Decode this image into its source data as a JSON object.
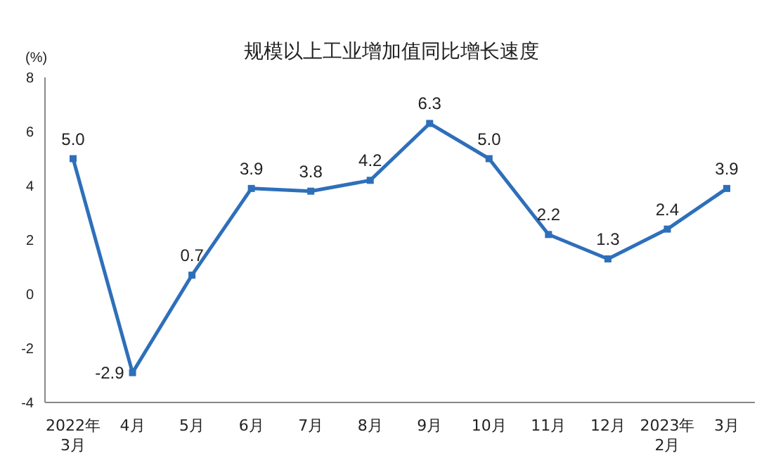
{
  "chart_data": {
    "type": "line",
    "title": "规模以上工业增加值同比增长速度",
    "ylabel": "(%)",
    "categories": [
      "2022年\n3月",
      "4月",
      "5月",
      "6月",
      "7月",
      "8月",
      "9月",
      "10月",
      "11月",
      "12月",
      "2023年\n2月",
      "3月"
    ],
    "values": [
      5.0,
      -2.9,
      0.7,
      3.9,
      3.8,
      4.2,
      6.3,
      5.0,
      2.2,
      1.3,
      2.4,
      3.9
    ],
    "value_labels": [
      "5.0",
      "-2.9",
      "0.7",
      "3.9",
      "3.8",
      "4.2",
      "6.3",
      "5.0",
      "2.2",
      "1.3",
      "2.4",
      "3.9"
    ],
    "color": "#2e6fba",
    "marker": "square",
    "line_style": "solid",
    "ylim": [
      -4,
      8
    ],
    "yticks": [
      -4,
      -2,
      0,
      2,
      4,
      6,
      8
    ],
    "grid": false
  }
}
